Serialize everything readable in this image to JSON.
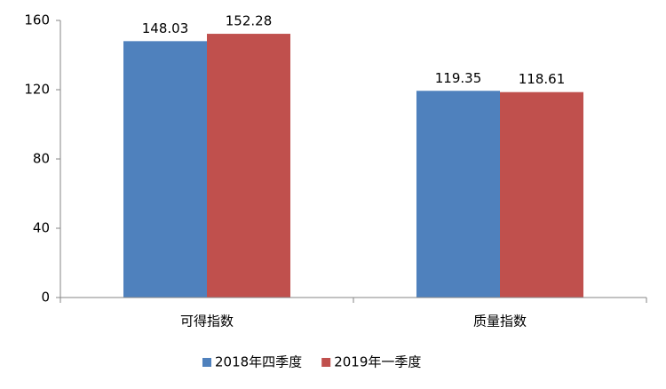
{
  "chart_data": {
    "type": "bar",
    "categories": [
      "可得指数",
      "质量指数"
    ],
    "series": [
      {
        "name": "2018年四季度",
        "color": "#4f81bd",
        "values": [
          148.03,
          119.35
        ]
      },
      {
        "name": "2019年一季度",
        "color": "#c0504d",
        "values": [
          152.28,
          118.61
        ]
      }
    ],
    "ylim": [
      0,
      160
    ],
    "yticks": [
      0,
      40,
      80,
      120,
      160
    ],
    "grid": false,
    "legend": "bottom"
  }
}
